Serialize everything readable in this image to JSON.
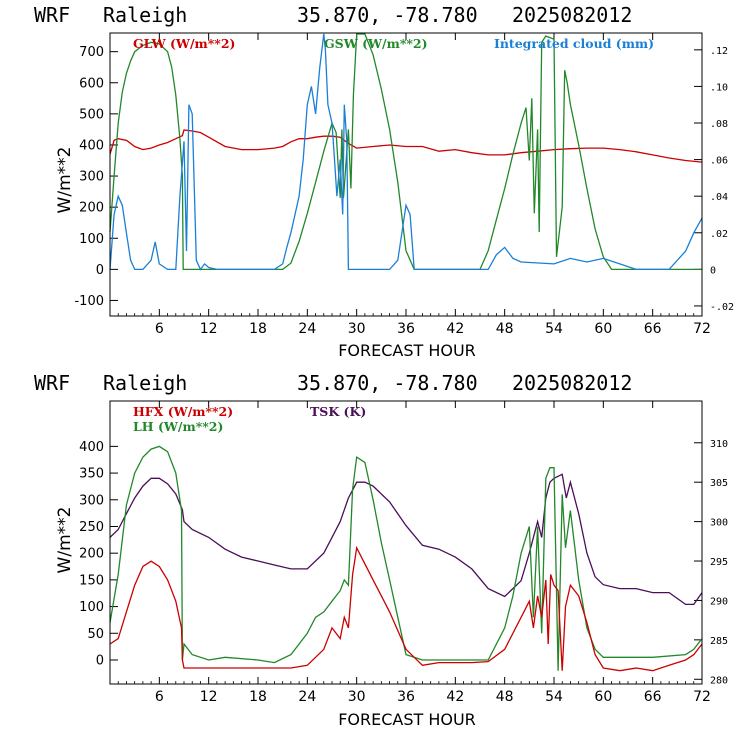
{
  "chart_data": [
    {
      "type": "line",
      "header": {
        "model": "WRF",
        "station": "Raleigh",
        "coords": "35.870, -78.780",
        "init": "2025082012"
      },
      "xlabel": "FORECAST HOUR",
      "ylabel": "W/m**2",
      "xlim": [
        0,
        72
      ],
      "ylim": [
        -150,
        760
      ],
      "y2lim": [
        -0.0255,
        0.1292
      ],
      "x_ticks": [
        6,
        12,
        18,
        24,
        30,
        36,
        42,
        48,
        54,
        60,
        66,
        72
      ],
      "y_ticks": [
        -100,
        0,
        100,
        200,
        300,
        400,
        500,
        600,
        700
      ],
      "y2_ticks": [
        {
          "value": -0.02,
          "label": "-.02"
        },
        {
          "value": 0,
          "label": "0"
        },
        {
          "value": 0.02,
          "label": ".02"
        },
        {
          "value": 0.04,
          "label": ".04"
        },
        {
          "value": 0.06,
          "label": ".06"
        },
        {
          "value": 0.08,
          "label": ".08"
        },
        {
          "value": 0.1,
          "label": ".10"
        },
        {
          "value": 0.12,
          "label": ".12"
        }
      ],
      "legend": [
        {
          "label": "GLW (W/m**2)",
          "color": "#cc0000"
        },
        {
          "label": "GSW (W/m**2)",
          "color": "#22882a"
        },
        {
          "label": "Integrated cloud (mm)",
          "color": "#1a7fd6"
        }
      ],
      "series": [
        {
          "name": "GLW (W/m**2)",
          "color": "#cc0000",
          "axis": "left",
          "x": [
            0,
            0.5,
            1,
            2,
            3,
            4,
            5,
            6,
            7,
            8,
            8.8,
            9,
            10,
            11,
            12,
            14,
            16,
            18,
            20,
            21,
            22,
            23,
            24,
            25,
            26,
            27,
            28,
            29,
            30,
            32,
            34,
            36,
            38,
            40,
            42,
            44,
            46,
            48,
            50,
            52,
            54,
            56,
            58,
            60,
            62,
            64,
            66,
            68,
            70,
            72
          ],
          "y": [
            370,
            415,
            420,
            415,
            395,
            385,
            390,
            400,
            408,
            420,
            430,
            448,
            445,
            440,
            425,
            395,
            385,
            385,
            390,
            395,
            410,
            420,
            420,
            425,
            428,
            428,
            425,
            405,
            390,
            395,
            400,
            395,
            395,
            380,
            385,
            375,
            368,
            368,
            375,
            380,
            385,
            388,
            390,
            390,
            385,
            378,
            368,
            358,
            350,
            345
          ]
        },
        {
          "name": "GSW (W/m**2)",
          "color": "#22882a",
          "axis": "left",
          "x": [
            0,
            0.5,
            1,
            1.5,
            2,
            2.5,
            3,
            4,
            5,
            6,
            7,
            7.5,
            8,
            8.5,
            8.8,
            8.9,
            9.5,
            21,
            22,
            23,
            24,
            25,
            26,
            27,
            27.5,
            28,
            28.2,
            28.4,
            29,
            29.3,
            29.6,
            30,
            31,
            32,
            33,
            34,
            35,
            36,
            37,
            38,
            45,
            46,
            47,
            48,
            49,
            50,
            50.6,
            51,
            51.3,
            51.6,
            52,
            52.2,
            52.5,
            53,
            54,
            54.3,
            55,
            55.3,
            55.6,
            56,
            57,
            58,
            59,
            60,
            61,
            72
          ],
          "y": [
            120,
            300,
            470,
            570,
            630,
            670,
            700,
            720,
            730,
            725,
            700,
            650,
            560,
            420,
            300,
            0,
            0,
            0,
            20,
            90,
            180,
            280,
            380,
            470,
            440,
            230,
            450,
            230,
            450,
            260,
            560,
            800,
            760,
            690,
            580,
            450,
            280,
            60,
            0,
            0,
            0,
            60,
            160,
            260,
            370,
            470,
            520,
            350,
            550,
            180,
            450,
            120,
            730,
            750,
            740,
            40,
            200,
            640,
            600,
            530,
            400,
            260,
            130,
            40,
            0,
            0
          ]
        },
        {
          "name": "Integrated cloud (mm)",
          "color": "#1a7fd6",
          "axis": "right",
          "x": [
            0,
            0.5,
            1,
            1.5,
            2,
            2.5,
            3,
            4,
            5,
            5.5,
            6,
            7,
            8,
            8.5,
            9,
            9.3,
            9.6,
            10,
            10.5,
            11,
            11.5,
            12,
            13,
            20,
            21,
            21.5,
            22,
            22.5,
            23,
            23.5,
            24,
            24.5,
            25,
            25.5,
            26,
            26.2,
            26.5,
            27,
            27.3,
            27.6,
            28,
            28.3,
            28.5,
            28.8,
            29,
            34,
            35,
            35.5,
            36,
            36.5,
            37,
            46,
            47,
            48,
            49,
            50,
            54,
            56,
            58,
            60,
            62,
            64,
            68,
            70,
            71,
            72
          ],
          "y": [
            0,
            0.03,
            0.04,
            0.035,
            0.02,
            0.005,
            0,
            0,
            0.005,
            0.015,
            0.003,
            0,
            0,
            0.04,
            0.07,
            0.01,
            0.09,
            0.085,
            0.005,
            0,
            0.003,
            0.001,
            0,
            0,
            0.003,
            0.012,
            0.02,
            0.03,
            0.04,
            0.06,
            0.09,
            0.1,
            0.085,
            0.11,
            0.13,
            0.12,
            0.09,
            0.08,
            0.06,
            0.04,
            0.06,
            0.03,
            0.09,
            0.07,
            0,
            0,
            0.005,
            0.02,
            0.035,
            0.03,
            0,
            0,
            0.008,
            0.012,
            0.006,
            0.004,
            0.003,
            0.006,
            0.004,
            0.006,
            0.003,
            0,
            0,
            0.01,
            0.02,
            0.028
          ]
        }
      ]
    },
    {
      "type": "line",
      "header": {
        "model": "WRF",
        "station": "Raleigh",
        "coords": "35.870, -78.780",
        "init": "2025082012"
      },
      "xlabel": "FORECAST HOUR",
      "ylabel": "W/m**2",
      "xlim": [
        0,
        72
      ],
      "ylim": [
        -45,
        485
      ],
      "y2lim": [
        279.4,
        315.3
      ],
      "x_ticks": [
        6,
        12,
        18,
        24,
        30,
        36,
        42,
        48,
        54,
        60,
        66,
        72
      ],
      "y_ticks": [
        0,
        50,
        100,
        150,
        200,
        250,
        300,
        350,
        400
      ],
      "y2_ticks": [
        {
          "value": 280,
          "label": "280"
        },
        {
          "value": 285,
          "label": "285"
        },
        {
          "value": 290,
          "label": "290"
        },
        {
          "value": 295,
          "label": "295"
        },
        {
          "value": 300,
          "label": "300"
        },
        {
          "value": 305,
          "label": "305"
        },
        {
          "value": 310,
          "label": "310"
        }
      ],
      "legend": [
        {
          "label": "HFX (W/m**2)",
          "color": "#cc0000"
        },
        {
          "label": "LH  (W/m**2)",
          "color": "#22882a"
        },
        {
          "label": "TSK (K)",
          "color": "#4b0f5a"
        }
      ],
      "series": [
        {
          "name": "HFX (W/m**2)",
          "color": "#cc0000",
          "axis": "left",
          "x": [
            0,
            1,
            2,
            3,
            4,
            5,
            6,
            7,
            8,
            8.7,
            8.8,
            9,
            12,
            18,
            22,
            24,
            25,
            26,
            27,
            28,
            28.5,
            29,
            29.5,
            30,
            31,
            32,
            34,
            36,
            38,
            40,
            44,
            46,
            48,
            49,
            50,
            51,
            51.5,
            52,
            52.5,
            53,
            53.3,
            53.6,
            54,
            54.5,
            55,
            55.4,
            56,
            57,
            58,
            59,
            60,
            62,
            64,
            66,
            68,
            70,
            71,
            72
          ],
          "y": [
            30,
            40,
            90,
            140,
            175,
            185,
            175,
            150,
            110,
            60,
            0,
            -15,
            -15,
            -15,
            -15,
            -10,
            5,
            20,
            60,
            40,
            80,
            60,
            160,
            210,
            180,
            150,
            90,
            20,
            -10,
            -5,
            -5,
            -3,
            20,
            50,
            80,
            110,
            60,
            120,
            80,
            150,
            30,
            160,
            140,
            130,
            -20,
            100,
            140,
            120,
            70,
            10,
            -15,
            -20,
            -15,
            -20,
            -10,
            0,
            10,
            30
          ]
        },
        {
          "name": "LH  (W/m**2)",
          "color": "#22882a",
          "axis": "left",
          "x": [
            0,
            1,
            2,
            3,
            4,
            5,
            6,
            7,
            8,
            8.7,
            8.8,
            9,
            10,
            12,
            14,
            18,
            20,
            22,
            23,
            24,
            25,
            26,
            27,
            27.5,
            28,
            28.5,
            29,
            29.5,
            30,
            31,
            32,
            33,
            34,
            35,
            36,
            38,
            44,
            46,
            48,
            49,
            50,
            51,
            51.5,
            52,
            52.5,
            53,
            53.5,
            54,
            54.5,
            55,
            55.4,
            56,
            57,
            58,
            59,
            60,
            62,
            66,
            70,
            71,
            72
          ],
          "y": [
            70,
            160,
            290,
            350,
            380,
            395,
            400,
            390,
            350,
            280,
            0,
            30,
            10,
            0,
            5,
            0,
            -5,
            10,
            30,
            50,
            80,
            90,
            110,
            120,
            130,
            150,
            140,
            320,
            380,
            370,
            300,
            220,
            150,
            80,
            10,
            0,
            0,
            0,
            60,
            120,
            200,
            250,
            80,
            250,
            50,
            340,
            360,
            360,
            -20,
            310,
            210,
            280,
            150,
            60,
            20,
            5,
            5,
            5,
            10,
            20,
            40
          ]
        },
        {
          "name": "TSK (K)",
          "color": "#4b0f5a",
          "axis": "right",
          "x": [
            0,
            1,
            2,
            3,
            4,
            5,
            6,
            7,
            8,
            8.8,
            9,
            10,
            12,
            14,
            16,
            18,
            20,
            22,
            24,
            26,
            27,
            28,
            29,
            29.5,
            30,
            31,
            32,
            34,
            36,
            38,
            40,
            42,
            44,
            46,
            48,
            50,
            51,
            51.5,
            52,
            52.5,
            53,
            53.5,
            54,
            55,
            55.5,
            56,
            57,
            58,
            59,
            60,
            62,
            64,
            66,
            68,
            70,
            71,
            72
          ],
          "y": [
            298,
            299,
            301,
            303,
            304.5,
            305.5,
            305.5,
            304.8,
            303.5,
            301.5,
            300,
            299,
            298,
            296.5,
            295.5,
            295,
            294.5,
            294,
            294,
            296,
            298,
            300,
            303,
            304,
            305,
            305,
            304.5,
            302.5,
            299.5,
            297,
            296.5,
            295.5,
            294,
            291.5,
            290.5,
            292.5,
            296,
            298,
            300,
            298,
            303,
            305,
            305.5,
            306,
            303,
            305,
            301,
            296,
            293,
            292,
            291.5,
            291.5,
            291,
            291,
            289.5,
            289.5,
            291
          ]
        }
      ]
    }
  ]
}
